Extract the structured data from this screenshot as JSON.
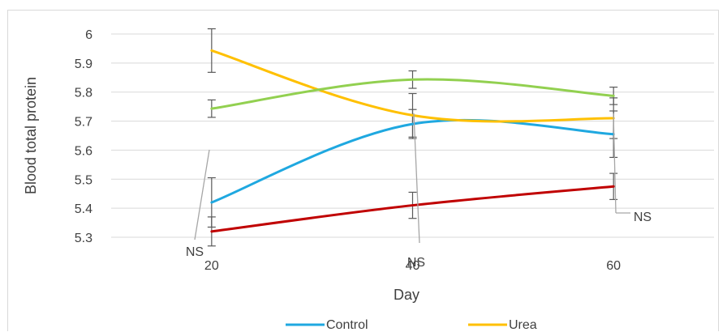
{
  "chart_data": {
    "type": "line",
    "title": "",
    "xlabel": "Day",
    "ylabel": "Blood total protein",
    "x": [
      20,
      40,
      60
    ],
    "x_ticks": [
      "20",
      "40",
      "60"
    ],
    "xlim": [
      10,
      70
    ],
    "ylim": [
      5.3,
      6.0
    ],
    "y_ticks": [
      "5.3",
      "5.4",
      "5.5",
      "5.6",
      "5.7",
      "5.8",
      "5.9",
      "6"
    ],
    "grid": true,
    "legend_position": "bottom",
    "series": [
      {
        "name": "Control",
        "color": "#1fa8e0",
        "values": [
          5.42,
          5.69,
          5.655
        ],
        "errors": [
          0.085,
          0.05,
          0.08
        ]
      },
      {
        "name": "Urea",
        "color": "#ffc000",
        "values": [
          5.943,
          5.72,
          5.71
        ],
        "errors": [
          0.075,
          0.075,
          0.07
        ]
      },
      {
        "name": "",
        "color": "#92d050",
        "values": [
          5.743,
          5.843,
          5.787
        ],
        "errors": [
          0.03,
          0.03,
          0.03
        ]
      },
      {
        "name": "",
        "color": "#c00000",
        "values": [
          5.32,
          5.41,
          5.475
        ],
        "errors": [
          0.05,
          0.045,
          0.045
        ]
      }
    ],
    "annotations": [
      {
        "text": "NS",
        "x": 20
      },
      {
        "text": "NS",
        "x": 40
      },
      {
        "text": "NS",
        "x": 60
      }
    ]
  }
}
